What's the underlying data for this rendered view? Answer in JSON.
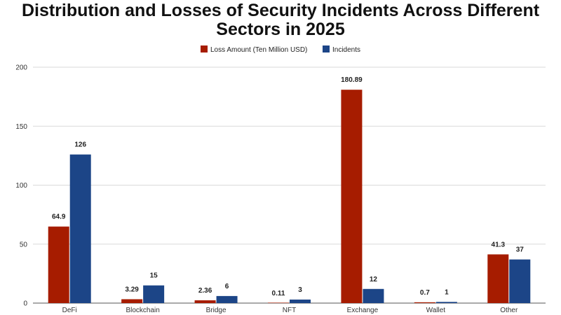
{
  "chart_data": {
    "type": "bar",
    "title_line1": "Distribution and Losses of Security Incidents Across Different",
    "title_line2": "Sectors in 2025",
    "categories": [
      "DeFi",
      "Blockchain",
      "Bridge",
      "NFT",
      "Exchange",
      "Wallet",
      "Other"
    ],
    "series": [
      {
        "name": "Loss Amount (Ten Million USD)",
        "color": "#a61c00",
        "values": [
          64.9,
          3.29,
          2.36,
          0.11,
          180.89,
          0.7,
          41.3
        ],
        "labels": [
          "64.9",
          "3.29",
          "2.36",
          "0.11",
          "180.89",
          "0.7",
          "41.3"
        ]
      },
      {
        "name": "Incidents",
        "color": "#1c4587",
        "values": [
          126,
          15,
          6,
          3,
          12,
          1,
          37
        ],
        "labels": [
          "126",
          "15",
          "6",
          "3",
          "12",
          "1",
          "37"
        ]
      }
    ],
    "ylim": [
      0,
      200
    ],
    "yticks": [
      0,
      50,
      100,
      150,
      200
    ],
    "ytick_labels": [
      "0",
      "50",
      "100",
      "150",
      "200"
    ],
    "grid": true,
    "legend_position": "top-center",
    "xlabel": "",
    "ylabel": ""
  }
}
